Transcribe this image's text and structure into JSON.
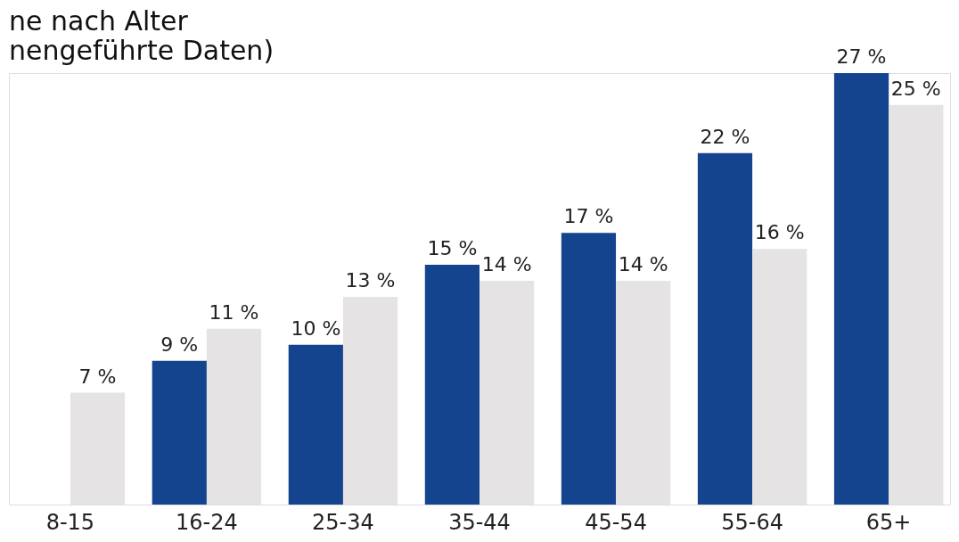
{
  "chart_data": {
    "type": "bar",
    "title": "ne nach Alter",
    "subtitle": "nengeführte Daten)",
    "categories": [
      "8-15",
      "16-24",
      "25-34",
      "35-44",
      "45-54",
      "55-64",
      "65+"
    ],
    "series": [
      {
        "color": "#15448e",
        "values": [
          null,
          9,
          10,
          15,
          17,
          22,
          27
        ],
        "value_labels": [
          null,
          "9 %",
          "10 %",
          "15 %",
          "17 %",
          "22 %",
          "27 %"
        ]
      },
      {
        "color": "#e5e3e4",
        "values": [
          7,
          11,
          13,
          14,
          14,
          16,
          25
        ],
        "value_labels": [
          "7 %",
          "11 %",
          "13 %",
          "14 %",
          "14 %",
          "16 %",
          "25 %"
        ]
      }
    ],
    "grid": false,
    "legend": false
  }
}
